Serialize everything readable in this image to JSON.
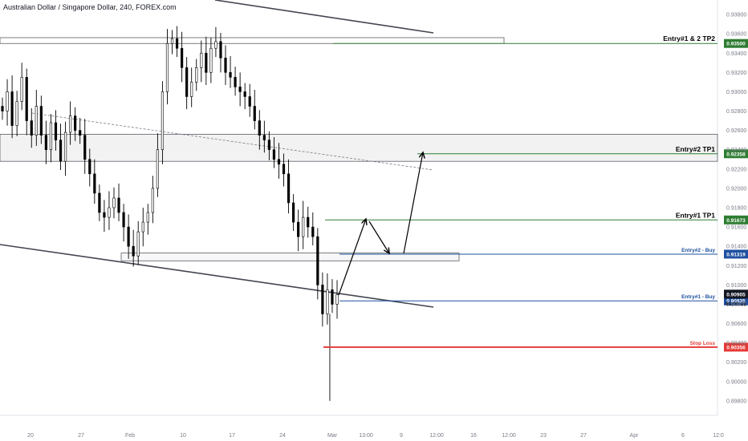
{
  "title": "Australian Dollar / Singapore Dollar, 240, FOREX.com",
  "chart_data": {
    "type": "candlestick",
    "ylim": [
      0.8965,
      0.9395
    ],
    "y_ticks": [
      "0.93800",
      "0.93600",
      "0.93400",
      "0.93200",
      "0.93000",
      "0.92800",
      "0.92600",
      "0.92400",
      "0.92200",
      "0.92000",
      "0.91800",
      "0.91600",
      "0.91400",
      "0.91200",
      "0.91000",
      "0.90800",
      "0.90600",
      "0.90400",
      "0.90200",
      "0.90000",
      "0.89800",
      "0.89600"
    ],
    "x_ticks": [
      "20",
      "27",
      "Feb",
      "10",
      "17",
      "24",
      "Mar",
      "13:00",
      "9",
      "12:00",
      "16",
      "12:00",
      "23",
      "27",
      "Apr",
      "6",
      "12:0"
    ],
    "price_candles": [
      0.928,
      0.93,
      0.9265,
      0.929,
      0.9315,
      0.927,
      0.9255,
      0.9285,
      0.9255,
      0.924,
      0.9268,
      0.925,
      0.9228,
      0.9258,
      0.9275,
      0.926,
      0.9255,
      0.923,
      0.9215,
      0.9195,
      0.9175,
      0.917,
      0.918,
      0.919,
      0.9175,
      0.916,
      0.914,
      0.913,
      0.9155,
      0.9165,
      0.9175,
      0.92,
      0.924,
      0.93,
      0.935,
      0.9355,
      0.9345,
      0.9325,
      0.9295,
      0.931,
      0.9325,
      0.934,
      0.932,
      0.9345,
      0.9352,
      0.9335,
      0.932,
      0.9315,
      0.9305,
      0.93,
      0.9295,
      0.9285,
      0.927,
      0.9255,
      0.925,
      0.924,
      0.923,
      0.9225,
      0.9215,
      0.9185,
      0.9165,
      0.915,
      0.917,
      0.916,
      0.915,
      0.91,
      0.907,
      0.9095,
      0.908,
      0.909
    ],
    "levels": [
      {
        "name": "Entry#1 & 2 TP2",
        "price": 0.935,
        "price_label": "0.93500",
        "color": "#2e7d32",
        "label_color": "#000000"
      },
      {
        "name": "Entry#2 TP1",
        "price": 0.92358,
        "price_label": "0.92358",
        "color": "#2e7d32",
        "label_color": "#000000"
      },
      {
        "name": "Entry#1 TP1",
        "price": 0.91673,
        "price_label": "0.91673",
        "color": "#2e7d32",
        "label_color": "#000000"
      },
      {
        "name": "Entry#2 - Buy",
        "price": 0.91319,
        "price_label": "0.91319",
        "color": "#1e50a0",
        "label_color": "#1e50a0"
      },
      {
        "name": "Entry#1 - Buy",
        "price": 0.90835,
        "price_label": "0.90835",
        "color": "#1e50a0",
        "label_color": "#1e50a0"
      },
      {
        "name": "Stop Loss",
        "price": 0.90356,
        "price_label": "0.90356",
        "color": "#e53935",
        "label_color": "#e53935"
      }
    ],
    "current_price": {
      "price": 0.90905,
      "label": "0.90905",
      "countdown": "01:05:23"
    },
    "zones": [
      {
        "name": "supply-zone-top",
        "from": 0.935,
        "to": 0.9356
      },
      {
        "name": "resistance-zone",
        "from": 0.9228,
        "to": 0.9256
      },
      {
        "name": "entry2-zone",
        "from": 0.9125,
        "to": 0.9133
      }
    ]
  }
}
